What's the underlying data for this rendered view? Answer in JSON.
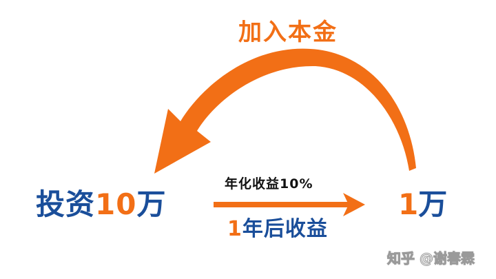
{
  "labels": {
    "add_principal": "加入本金",
    "invest_prefix": "投资",
    "invest_amount": "10",
    "invest_unit": "万",
    "annual_rate": "年化收益10%",
    "result_amount": "1",
    "result_unit": "万",
    "after_prefix": "1",
    "after_rest": "年后收益"
  },
  "watermark": {
    "text": "知乎 @谢春霖"
  },
  "colors": {
    "orange": "#f26f16",
    "blue": "#1a4e9a",
    "black": "#111111"
  }
}
